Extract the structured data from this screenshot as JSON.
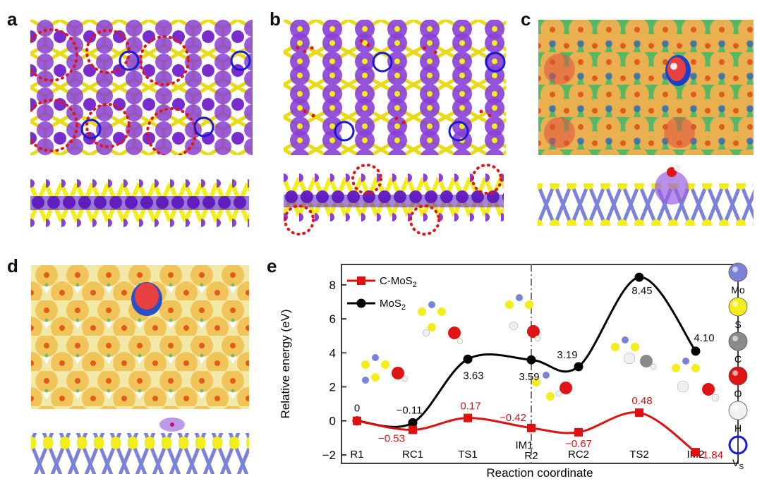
{
  "panel_labels": {
    "a": "a",
    "b": "b",
    "c": "c",
    "d": "d",
    "e": "e"
  },
  "legend_right": [
    {
      "label": "Mo",
      "color": "#7b83d8"
    },
    {
      "label": "S",
      "color": "#f1ee1c"
    },
    {
      "label": "C",
      "color": "#8a8a8a"
    },
    {
      "label": "O",
      "color": "#e01414"
    },
    {
      "label": "H",
      "color": "#f2f2f2"
    },
    {
      "label": "V",
      "sub": "S",
      "color": "#1a1ad6"
    }
  ],
  "chart_data": {
    "type": "line",
    "xlabel": "Reaction coordinate",
    "ylabel": "Relative energy (eV)",
    "ylim": [
      -2.5,
      9.2
    ],
    "yticks": [
      -2,
      0,
      2,
      4,
      6,
      8
    ],
    "categories": [
      "R1",
      "RC1",
      "TS1",
      "IM1",
      "R2",
      "RC2",
      "TS2",
      "IM2"
    ],
    "series": [
      {
        "name": "MoS",
        "name_sub": "2",
        "color": "#000000",
        "marker": "circle",
        "points": [
          {
            "x": 0,
            "y": 0,
            "label": "0"
          },
          {
            "x": 1,
            "y": -0.11,
            "label": "−0.11"
          },
          {
            "x": 2,
            "y": 3.63,
            "label": "3.63"
          },
          {
            "x": 3,
            "y": 3.59,
            "label": "3.59"
          },
          {
            "x": 4,
            "y": 3.19,
            "label": "3.19"
          },
          {
            "x": 5,
            "y": 8.45,
            "label": "8.45"
          },
          {
            "x": 6,
            "y": 4.1,
            "label": "4.10"
          }
        ]
      },
      {
        "name": "C-MoS",
        "name_sub": "2",
        "color": "#e01010",
        "marker": "square",
        "points": [
          {
            "x": 0,
            "y": 0
          },
          {
            "x": 1,
            "y": -0.53,
            "label": "−0.53"
          },
          {
            "x": 2,
            "y": 0.17,
            "label": "0.17"
          },
          {
            "x": 3,
            "y": -0.42,
            "label": "−0.42"
          },
          {
            "x": 4,
            "y": -0.67,
            "label": "−0.67"
          },
          {
            "x": 5,
            "y": 0.48,
            "label": "0.48"
          },
          {
            "x": 6,
            "y": -1.84,
            "label": "−1.84"
          }
        ]
      }
    ],
    "legend_position": "top-left"
  }
}
